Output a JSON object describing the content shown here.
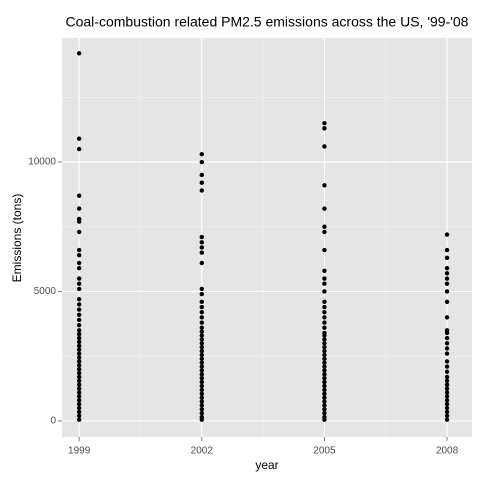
{
  "chart_data": {
    "type": "scatter",
    "title": "Coal-combustion related PM2.5 emissions across the US, '99-'08",
    "x_label": "year",
    "y_label": "Emissions (tons)",
    "color": "#000000",
    "groups": [
      {
        "x": 1999,
        "values": [
          14200,
          10900,
          10500,
          8700,
          8200,
          7800,
          7700,
          7300,
          6600,
          6400,
          6100,
          5900,
          5500,
          5300,
          5100,
          4700,
          4500,
          4300,
          4100,
          3900,
          3700,
          3500,
          3350,
          3200,
          3050,
          2900,
          2750,
          2600,
          2450,
          2300,
          2150,
          2000,
          1850,
          1700,
          1550,
          1400,
          1250,
          1100,
          950,
          800,
          650,
          500,
          350,
          200,
          50
        ]
      },
      {
        "x": 2002,
        "values": [
          10300,
          10000,
          9500,
          9200,
          8900,
          7100,
          6900,
          6700,
          6500,
          6100,
          5100,
          4900,
          4600,
          4400,
          4200,
          4000,
          3800,
          3600,
          3450,
          3300,
          3150,
          3000,
          2850,
          2700,
          2550,
          2400,
          2250,
          2100,
          1950,
          1800,
          1650,
          1500,
          1350,
          1200,
          1050,
          900,
          750,
          600,
          450,
          300,
          150,
          50
        ]
      },
      {
        "x": 2005,
        "values": [
          11500,
          11300,
          10600,
          9100,
          8200,
          7500,
          7300,
          6600,
          5800,
          5500,
          5300,
          5000,
          4600,
          4400,
          4200,
          4000,
          3800,
          3600,
          3400,
          3300,
          3150,
          3000,
          2850,
          2700,
          2550,
          2400,
          2250,
          2100,
          1950,
          1800,
          1650,
          1500,
          1350,
          1200,
          1050,
          900,
          750,
          600,
          450,
          300,
          150,
          50
        ]
      },
      {
        "x": 2008,
        "values": [
          7200,
          6600,
          6300,
          5900,
          5700,
          5500,
          5300,
          5000,
          4600,
          4000,
          3500,
          3400,
          3200,
          3000,
          2800,
          2600,
          2300,
          2100,
          1900,
          1700,
          1550,
          1400,
          1250,
          1100,
          950,
          800,
          650,
          500,
          350,
          200,
          50
        ]
      }
    ],
    "xlim": [
      1998.58,
      2008.61
    ],
    "xticks": [
      1999,
      2002,
      2005,
      2008
    ],
    "ylim": [
      -620,
      14790
    ],
    "yticks": [
      0,
      5000,
      10000
    ],
    "x_minor_ticks": [
      2000.5,
      2003.5,
      2006.5
    ],
    "y_minor_ticks": [
      2500,
      7500,
      12500
    ],
    "grid": true
  }
}
